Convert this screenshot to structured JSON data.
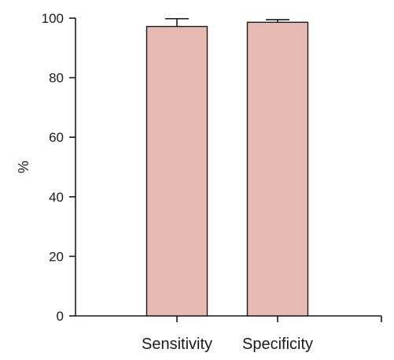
{
  "chart_data": {
    "type": "bar",
    "title": "",
    "xlabel": "",
    "ylabel": "%",
    "categories": [
      "Sensitivity",
      "Specificity"
    ],
    "values": [
      97.2,
      98.6
    ],
    "error_upper": [
      2.6,
      0.9
    ],
    "ylim": [
      0,
      100
    ],
    "yticks": [
      0,
      20,
      40,
      60,
      80,
      100
    ],
    "grid": false,
    "legend": "none",
    "colors": {
      "bar_fill": "#e6bab0",
      "bar_stroke": "#1a1a1a",
      "axis": "#1a1a1a"
    }
  }
}
